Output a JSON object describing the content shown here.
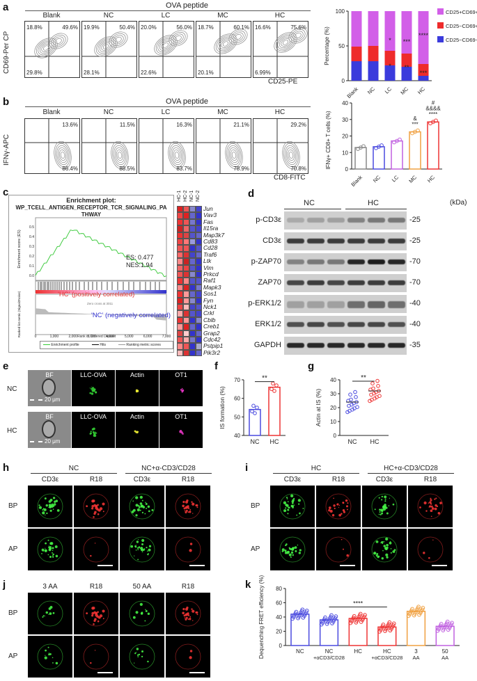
{
  "panel_labels": {
    "a": "a",
    "b": "b",
    "c": "c",
    "d": "d",
    "e": "e",
    "f": "f",
    "g": "g",
    "h": "h",
    "i": "i",
    "j": "j",
    "k": "k"
  },
  "panel_a": {
    "header": "OVA peptide",
    "groups": [
      "Blank",
      "NC",
      "LC",
      "MC",
      "HC"
    ],
    "ylabel": "CD69-Per CP",
    "xlabel": "CD25-PE",
    "upper_left": [
      "18.8%",
      "19.9%",
      "20.0%",
      "18.7%",
      "16.6%"
    ],
    "upper_right": [
      "49.6%",
      "50.4%",
      "56.0%",
      "60.1%",
      "75.6%"
    ],
    "lower_left": [
      "29.8%",
      "28.1%",
      "22.6%",
      "20.1%",
      "6.99%"
    ]
  },
  "panel_b": {
    "header": "OVA peptide",
    "groups": [
      "Blank",
      "NC",
      "LC",
      "MC",
      "HC"
    ],
    "ylabel": "IFNγ-APC",
    "xlabel": "CD8-FITC",
    "upper_right": [
      "13.6%",
      "11.5%",
      "16.3%",
      "21.1%",
      "29.2%"
    ],
    "lower_right": [
      "86.4%",
      "88.5%",
      "83.7%",
      "78.9%",
      "70.8%"
    ]
  },
  "chart_data": [
    {
      "type": "bar",
      "id": "a_stacked",
      "categories": [
        "Blank",
        "NC",
        "LC",
        "MC",
        "HC"
      ],
      "ylabel": "Percentage (%)",
      "ylim": [
        0,
        100
      ],
      "series": [
        {
          "name": "CD25−CD69−",
          "color": "#3b3bdc",
          "values": [
            28,
            28,
            22,
            20,
            7
          ]
        },
        {
          "name": "CD25−CD69+",
          "color": "#ee2b2b",
          "values": [
            21,
            22,
            21,
            19,
            17
          ]
        },
        {
          "name": "CD25+CD69+",
          "color": "#d25fe8",
          "values": [
            51,
            50,
            57,
            61,
            76
          ]
        }
      ],
      "annotations": [
        {
          "x": "LC",
          "text": "*"
        },
        {
          "x": "MC",
          "text": "***"
        },
        {
          "x": "HC",
          "text": "****"
        },
        {
          "x": "LC",
          "text": "*"
        },
        {
          "x": "MC",
          "text": "**"
        },
        {
          "x": "HC",
          "text": "***"
        }
      ],
      "legend": [
        "CD25+CD69+",
        "CD25−CD69+",
        "CD25−CD69−"
      ]
    },
    {
      "type": "bar",
      "id": "b_bar",
      "categories": [
        "Blank",
        "NC",
        "LC",
        "MC",
        "HC"
      ],
      "ylabel": "IFNγ+ CD8+ T cells (%)",
      "ylim": [
        0,
        40
      ],
      "colors": [
        "#888888",
        "#4a4adf",
        "#c060e0",
        "#f0a040",
        "#ee3333"
      ],
      "values": [
        13,
        13.5,
        17,
        22.5,
        28.5
      ],
      "annotations": [
        {
          "x": "MC",
          "text": "***"
        },
        {
          "x": "MC",
          "text": "&"
        },
        {
          "x": "HC",
          "text": "****"
        },
        {
          "x": "HC",
          "text": "&&&&"
        },
        {
          "x": "HC",
          "text": "#"
        }
      ]
    },
    {
      "type": "bar",
      "id": "f_bar",
      "categories": [
        "NC",
        "HC"
      ],
      "ylabel": "IS formation (%)",
      "ylim": [
        40,
        70
      ],
      "values": [
        54,
        66
      ],
      "colors": [
        "#4a4adf",
        "#ee3333"
      ],
      "sig": "**"
    },
    {
      "type": "scatter",
      "id": "g_dot",
      "categories": [
        "NC",
        "HC"
      ],
      "ylabel": "Actin at IS (%)",
      "ylim": [
        0,
        40
      ],
      "values": [
        24,
        32
      ],
      "colors": [
        "#4a4adf",
        "#ee3333"
      ],
      "sig": "**"
    },
    {
      "type": "bar",
      "id": "k_bar",
      "categories": [
        "NC",
        "NC +αCD3/CD28",
        "HC",
        "HC +αCD3/CD28",
        "3 AA",
        "50 AA"
      ],
      "ylabel": "Dequenching FRET efficiency (%)",
      "ylim": [
        0,
        80
      ],
      "values": [
        44,
        36,
        38,
        26,
        48,
        27
      ],
      "colors": [
        "#4a4adf",
        "#4a4adf",
        "#ee3333",
        "#ee3333",
        "#f0a040",
        "#c060e0"
      ],
      "sig": "****"
    }
  ],
  "panel_c": {
    "title": "Enrichment plot:",
    "subtitle": "WP_TCELL_ANTIGEN_RECEPTOR_TCR_SIGNALING_PA THWAY",
    "es": "ES: 0.477",
    "nes": "NES:1.94",
    "ylabel_top": "Enrichment score (ES)",
    "ylabel_bottom": "Ranked list metric (Signal2Noise)",
    "pos_label": "'HC' (positively correlated)",
    "neg_label": "'NC' (negatively correlated)",
    "zero_label": "Zero cross at 3011",
    "xlabel": "Rank in Ordered Dataset",
    "xticks": [
      "0",
      "1,000",
      "2,000",
      "3,000",
      "4,000",
      "5,000",
      "6,000",
      "7,000"
    ],
    "legend": [
      "Enrichment profile",
      "Hits",
      "Ranking metric scores"
    ],
    "heat_cols": [
      "HC-1",
      "HC-2",
      "NC-1",
      "NC-2"
    ],
    "genes": [
      "Jun",
      "Vav3",
      "Fas",
      "Il15ra",
      "Map3k7",
      "Cd83",
      "Cd28",
      "Traf6",
      "Ltk",
      "Vim",
      "Prkcd",
      "Raf1",
      "Mapk3",
      "Sos1",
      "Fyn",
      "Nck1",
      "Crkl",
      "Cblb",
      "Creb1",
      "Grap2",
      "Cdc42",
      "Pstpip1",
      "Pik3r2"
    ]
  },
  "panel_d": {
    "groups": [
      "NC",
      "HC"
    ],
    "unit": "(kDa)",
    "rows": [
      {
        "label": "p-CD3ε",
        "kda": "-25"
      },
      {
        "label": "CD3ε",
        "kda": "-25"
      },
      {
        "label": "p-ZAP70",
        "kda": "-70"
      },
      {
        "label": "ZAP70",
        "kda": "-70"
      },
      {
        "label": "p-ERK1/2",
        "kda": "-40"
      },
      {
        "label": "ERK1/2",
        "kda": "-40"
      },
      {
        "label": "GAPDH",
        "kda": "-35"
      }
    ]
  },
  "panel_e": {
    "cols": [
      "BF",
      "LLC-OVA",
      "Actin",
      "OT1"
    ],
    "rows": [
      "NC",
      "HC"
    ],
    "scale": "20 μm"
  },
  "panel_h": {
    "groups": [
      "NC",
      "NC+α-CD3/CD28"
    ],
    "cols": [
      "CD3ε",
      "R18",
      "CD3ε",
      "R18"
    ],
    "rows": [
      "BP",
      "AP"
    ]
  },
  "panel_i": {
    "groups": [
      "HC",
      "HC+α-CD3/CD28"
    ],
    "cols": [
      "CD3ε",
      "R18",
      "CD3ε",
      "R18"
    ],
    "rows": [
      "BP",
      "AP"
    ]
  },
  "panel_j": {
    "cols": [
      "3 AA",
      "R18",
      "50 AA",
      "R18"
    ],
    "rows": [
      "BP",
      "AP"
    ]
  },
  "axis_ticks": {
    "a": [
      "0",
      "50",
      "100"
    ],
    "b": [
      "0",
      "10",
      "20",
      "30",
      "40"
    ],
    "f": [
      "40",
      "50",
      "60",
      "70"
    ],
    "g": [
      "0",
      "10",
      "20",
      "30",
      "40"
    ],
    "k": [
      "0",
      "20",
      "40",
      "60",
      "80"
    ]
  }
}
